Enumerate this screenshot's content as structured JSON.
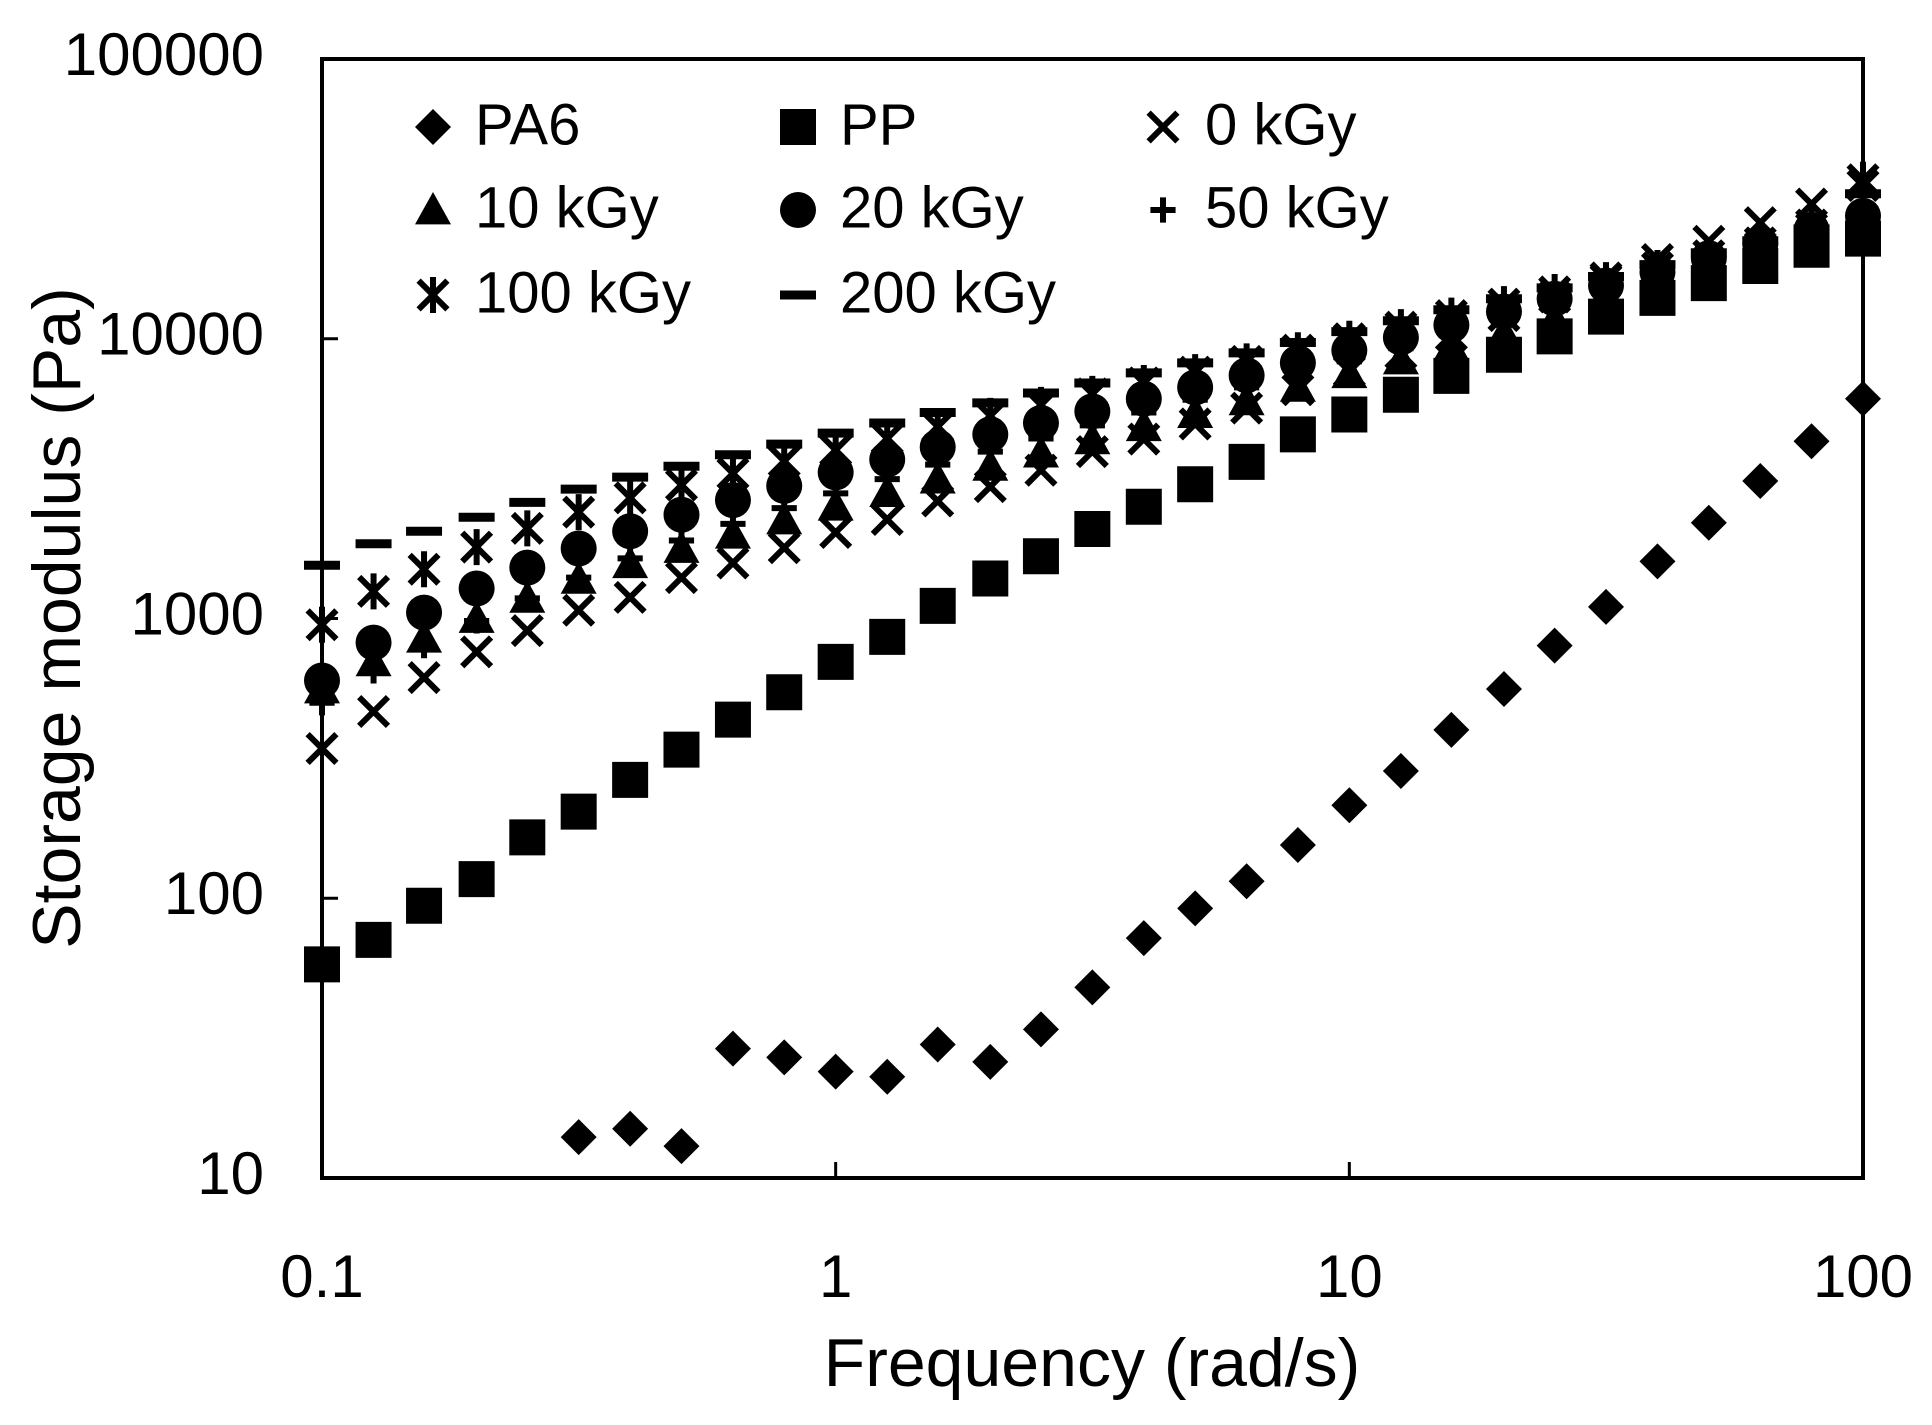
{
  "chart_data": {
    "type": "scatter",
    "xlabel": "Frequency (rad/s)",
    "ylabel": "Storage modulus (Pa)",
    "xscale": "log",
    "yscale": "log",
    "xlim": [
      0.1,
      100
    ],
    "ylim": [
      10,
      100000
    ],
    "xticks": [
      0.1,
      1,
      10,
      100
    ],
    "yticks": [
      10,
      100,
      1000,
      10000,
      100000
    ],
    "grid": false,
    "legend": "upper left",
    "x": [
      0.1,
      0.126,
      0.158,
      0.2,
      0.251,
      0.316,
      0.398,
      0.501,
      0.631,
      0.794,
      1,
      1.26,
      1.58,
      2,
      2.51,
      3.16,
      3.98,
      5.01,
      6.31,
      7.94,
      10,
      12.6,
      15.8,
      20,
      25.1,
      31.6,
      39.8,
      50.1,
      63.1,
      79.4,
      100
    ],
    "series": [
      {
        "name": "PA6",
        "color": "#000000",
        "marker": "diamond",
        "values": [
          null,
          null,
          null,
          null,
          null,
          14,
          15,
          13,
          29,
          27,
          24,
          23,
          30,
          26,
          34,
          48,
          72,
          92,
          115,
          155,
          215,
          285,
          400,
          560,
          800,
          1100,
          1600,
          2200,
          3100,
          4300,
          6100
        ]
      },
      {
        "name": "PP",
        "color": "#000000",
        "marker": "square",
        "values": [
          58,
          71,
          94,
          117,
          165,
          204,
          265,
          340,
          435,
          545,
          700,
          860,
          1110,
          1390,
          1670,
          2090,
          2510,
          3020,
          3630,
          4550,
          5360,
          6310,
          7370,
          8770,
          10200,
          12000,
          14000,
          15800,
          18200,
          20800,
          22800
        ]
      },
      {
        "name": "0 kGy",
        "color": "#000000",
        "marker": "x",
        "values": [
          343,
          465,
          615,
          760,
          905,
          1070,
          1190,
          1400,
          1580,
          1790,
          2030,
          2260,
          2630,
          2960,
          3390,
          3950,
          4380,
          4960,
          5650,
          6570,
          7650,
          8870,
          10300,
          12100,
          14100,
          16500,
          19200,
          22300,
          26000,
          30300,
          35300
        ]
      },
      {
        "name": "10 kGy",
        "color": "#000000",
        "marker": "triangle",
        "values": [
          560,
          700,
          850,
          1000,
          1180,
          1380,
          1570,
          1780,
          2000,
          2250,
          2520,
          2820,
          3150,
          3500,
          3900,
          4350,
          4850,
          5400,
          6000,
          6700,
          7500,
          8400,
          9400,
          10500,
          11800,
          13300,
          15000,
          17000,
          19300,
          22000,
          25000
        ]
      },
      {
        "name": "20 kGy",
        "color": "#000000",
        "marker": "circle",
        "values": [
          600,
          820,
          1050,
          1280,
          1520,
          1780,
          2050,
          2350,
          2650,
          2980,
          3330,
          3700,
          4100,
          4550,
          5000,
          5500,
          6100,
          6700,
          7400,
          8200,
          9100,
          10100,
          11200,
          12500,
          13900,
          15500,
          17300,
          19400,
          21800,
          24500,
          27500
        ]
      },
      {
        "name": "50 kGy",
        "color": "#000000",
        "marker": "plus",
        "values": [
          500,
          650,
          800,
          980,
          1180,
          1400,
          1640,
          1900,
          2180,
          2480,
          2800,
          3150,
          3550,
          3950,
          4400,
          4900,
          5450,
          6050,
          6700,
          7450,
          8300,
          9250,
          10300,
          11500,
          12800,
          14300,
          16000,
          18000,
          20200,
          22700,
          25500
        ]
      },
      {
        "name": "100 kGy",
        "color": "#000000",
        "marker": "asterisk",
        "values": [
          950,
          1250,
          1500,
          1800,
          2100,
          2400,
          2700,
          3000,
          3300,
          3650,
          4000,
          4400,
          4850,
          5300,
          5800,
          6350,
          6950,
          7600,
          8300,
          9100,
          10000,
          11000,
          12100,
          13300,
          14700,
          16200,
          17900,
          19800,
          22000,
          25500,
          37000
        ]
      },
      {
        "name": "200 kGy",
        "color": "#000000",
        "marker": "dash",
        "values": [
          1550,
          1850,
          2050,
          2300,
          2600,
          2900,
          3200,
          3500,
          3850,
          4200,
          4600,
          5000,
          5450,
          5900,
          6400,
          6950,
          7550,
          8200,
          8900,
          9700,
          10600,
          11600,
          12700,
          13900,
          15200,
          16700,
          18400,
          20300,
          22400,
          24700,
          33000
        ]
      }
    ]
  }
}
